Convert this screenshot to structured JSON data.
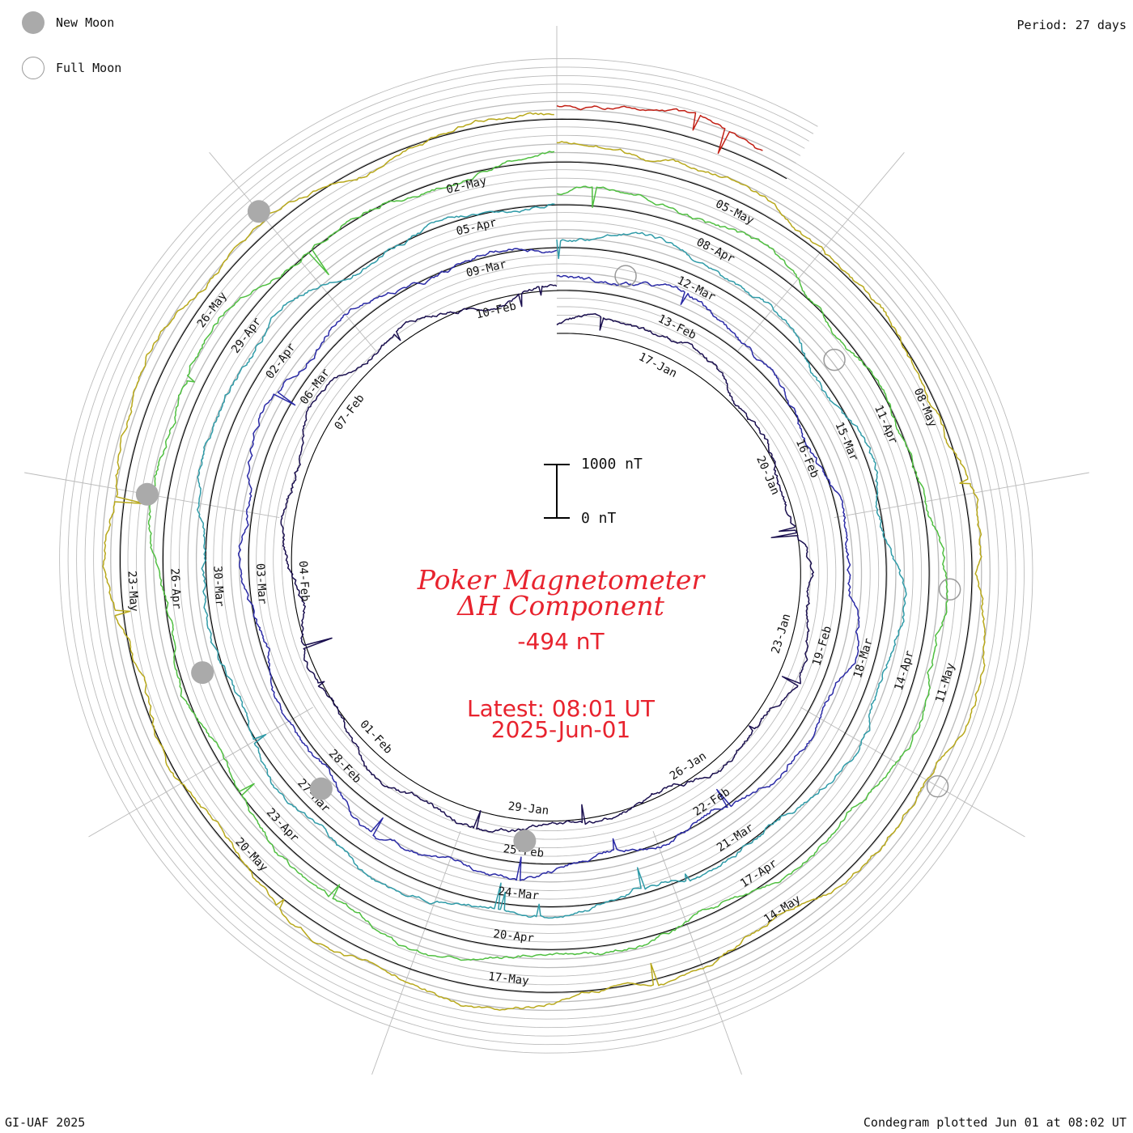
{
  "legend": {
    "new_moon_label": "New Moon",
    "full_moon_label": "Full Moon"
  },
  "period_label": "Period: 27 days",
  "credit_label": "GI-UAF 2025",
  "plotted_label": "Condegram plotted Jun 01 at 08:02 UT",
  "center": {
    "title_line1": "Poker Magnetometer",
    "title_line2": "ΔH Component",
    "current_value": "-494 nT",
    "latest_line1": "Latest: 08:01 UT",
    "latest_line2": "2025-Jun-01"
  },
  "scale": {
    "top_label": "1000 nT",
    "bottom_label": "0 nT"
  },
  "colors": {
    "text_red": "#e8232e",
    "grid": "#bbbbbb",
    "baseline": "#000000",
    "new_moon": "#aaaaaa",
    "full_moon": "#999999"
  },
  "chart_data": {
    "type": "line",
    "title": "Poker Magnetometer ΔH Component",
    "period_days": 27,
    "cycles": [
      {
        "color": "#1a0f4f",
        "start": "2025-01-15",
        "end": "2025-02-11",
        "date_labels": [
          "17-Jan",
          "20-Jan",
          "23-Jan",
          "26-Jan",
          "29-Jan",
          "01-Feb",
          "04-Feb",
          "07-Feb",
          "10-Feb"
        ]
      },
      {
        "color": "#2a2aa6",
        "start": "2025-02-11",
        "end": "2025-03-10",
        "date_labels": [
          "13-Feb",
          "16-Feb",
          "19-Feb",
          "22-Feb",
          "25-Feb",
          "28-Feb",
          "03-Mar",
          "06-Mar",
          "09-Mar"
        ]
      },
      {
        "color": "#2f9ba8",
        "start": "2025-03-10",
        "end": "2025-04-06",
        "date_labels": [
          "12-Mar",
          "15-Mar",
          "18-Mar",
          "21-Mar",
          "24-Mar",
          "27-Mar",
          "30-Mar",
          "02-Apr",
          "05-Apr"
        ]
      },
      {
        "color": "#4fbf40",
        "start": "2025-04-06",
        "end": "2025-05-03",
        "date_labels": [
          "08-Apr",
          "11-Apr",
          "14-Apr",
          "17-Apr",
          "20-Apr",
          "23-Apr",
          "26-Apr",
          "29-Apr",
          "02-May"
        ]
      },
      {
        "color": "#b8a81a",
        "start": "2025-05-03",
        "end": "2025-05-30",
        "date_labels": [
          "05-May",
          "08-May",
          "11-May",
          "14-May",
          "17-May",
          "20-May",
          "23-May",
          "26-May"
        ]
      },
      {
        "color": "#c21f14",
        "start": "2025-05-30",
        "end": "2025-06-01",
        "date_labels": []
      }
    ],
    "new_moons": [
      "2025-01-29",
      "2025-02-28",
      "2025-03-29",
      "2025-04-27",
      "2025-05-27"
    ],
    "full_moons": [
      "2025-02-12",
      "2025-03-14",
      "2025-04-13",
      "2025-05-12"
    ],
    "y_scale_nT": [
      0,
      1000
    ],
    "current_deltaH_nT": -494
  }
}
